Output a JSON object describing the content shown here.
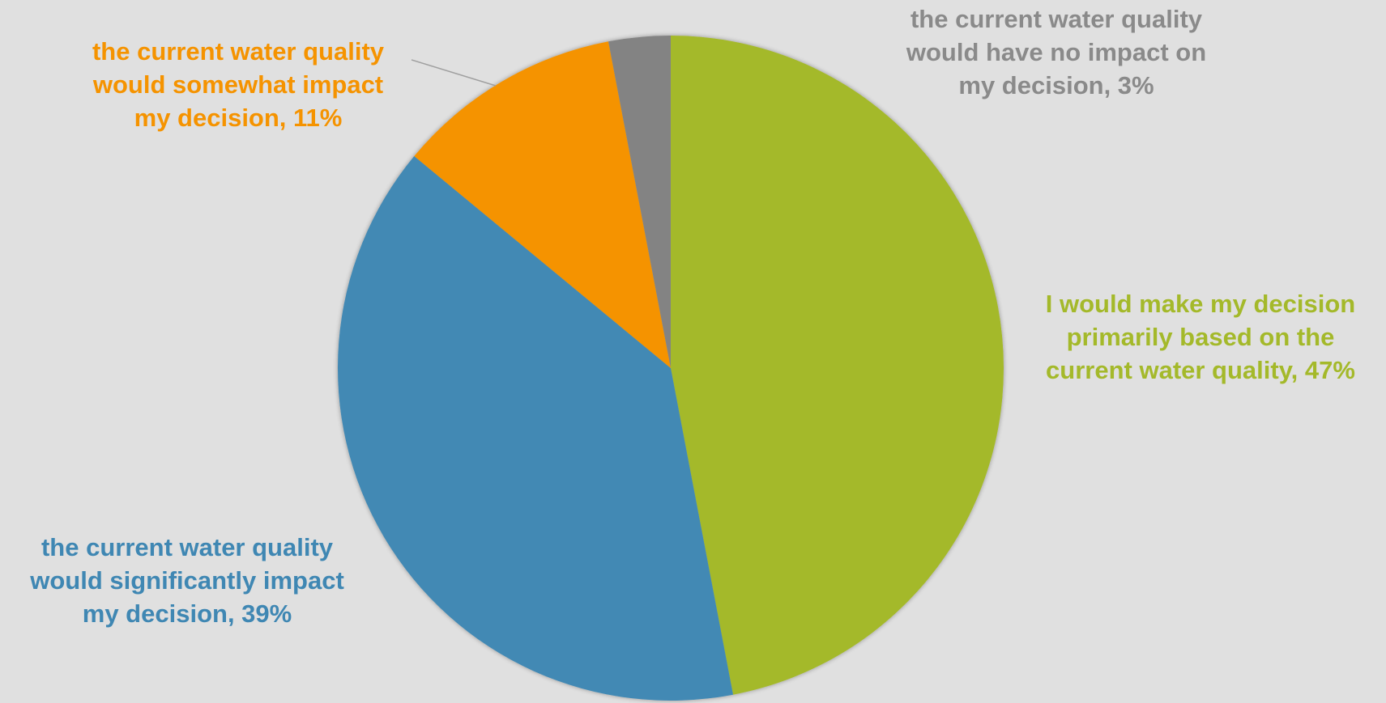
{
  "chart_data": {
    "type": "pie",
    "start_angle_deg": 0,
    "direction": "clockwise",
    "slices": [
      {
        "label_lines": [
          "I would make my decision",
          "primarily based on the",
          "current water quality, 47%"
        ],
        "category": "I would make my decision primarily based on the current water quality",
        "value": 47,
        "color": "#a4b92a",
        "label_color": "#a4b92a"
      },
      {
        "label_lines": [
          "the current water quality",
          "would significantly impact",
          "my decision, 39%"
        ],
        "category": "the current water quality would significantly impact my decision",
        "value": 39,
        "color": "#4289b4",
        "label_color": "#3f87b3"
      },
      {
        "label_lines": [
          "the current water quality",
          "would somewhat impact",
          "my decision, 11%"
        ],
        "category": "the current water quality would somewhat impact my decision",
        "value": 11,
        "color": "#f59300",
        "label_color": "#f59300"
      },
      {
        "label_lines": [
          "the current water quality",
          "would have no impact on",
          "my decision, 3%"
        ],
        "category": "the current water quality would have no impact on my decision",
        "value": 3,
        "color": "#838383",
        "label_color": "#8a8a8a"
      }
    ],
    "background": "#e0e0e0",
    "leader_line_color": "#a0a0a0"
  }
}
